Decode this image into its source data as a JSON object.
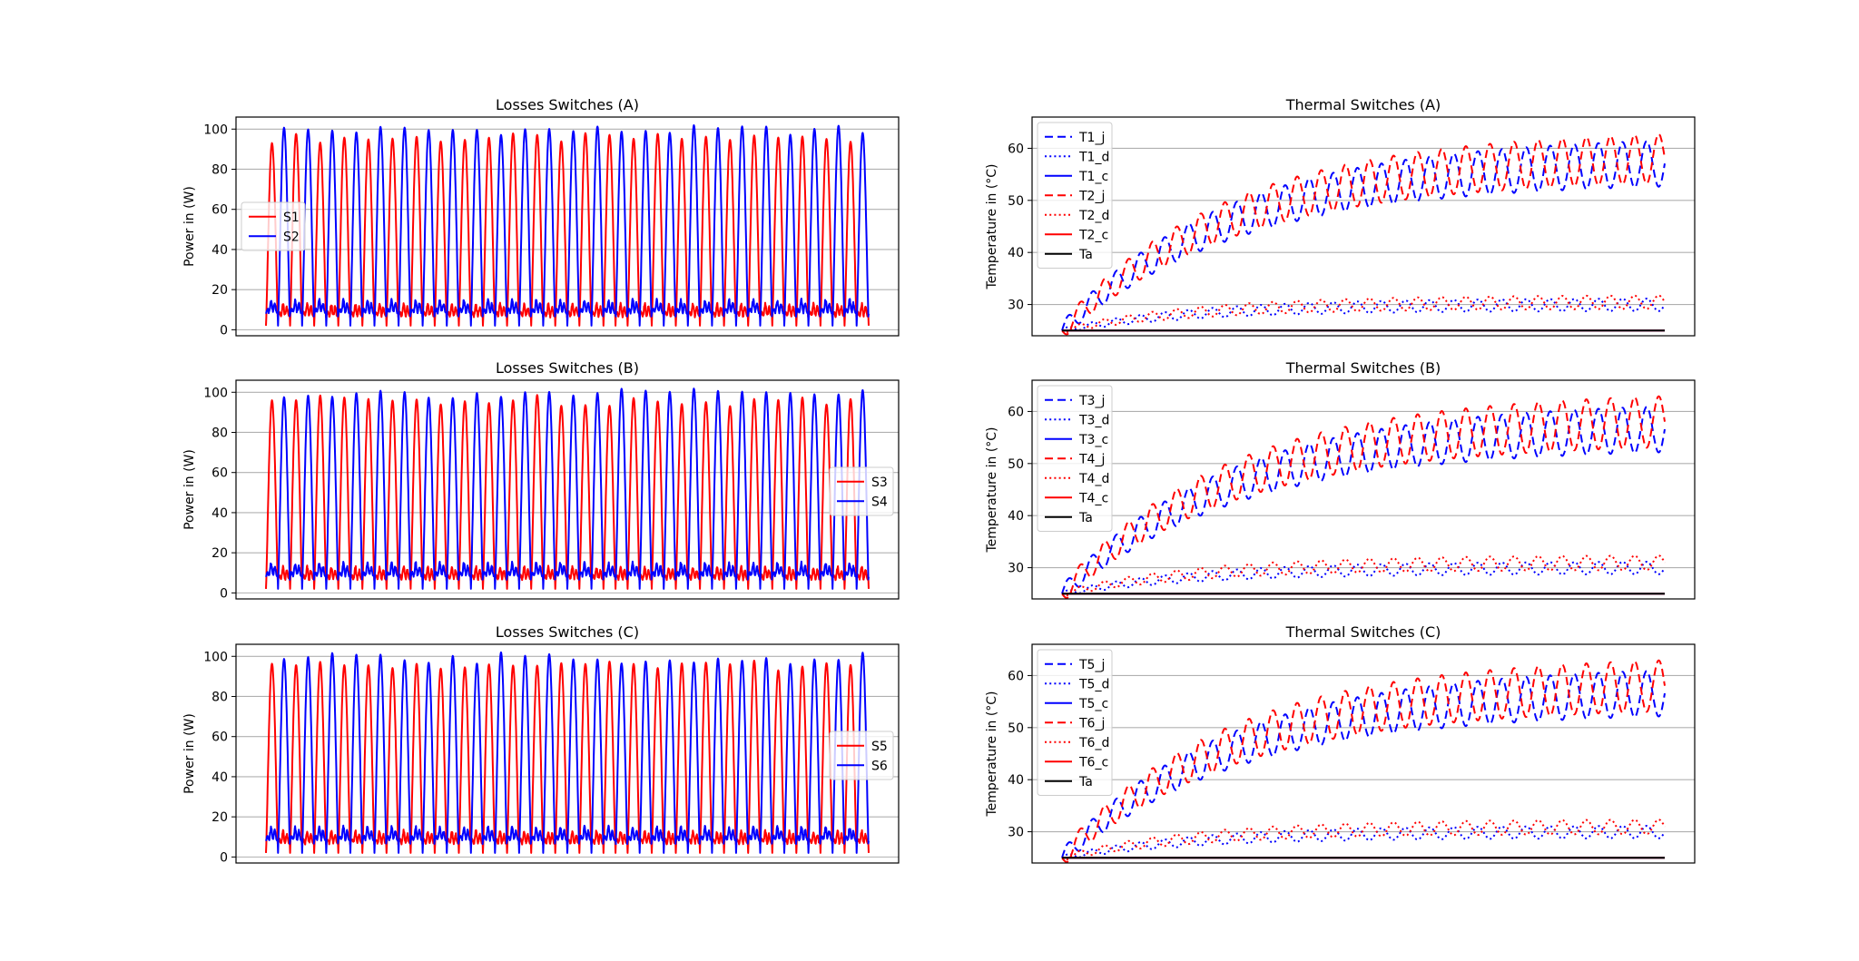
{
  "colors": {
    "phase1": "#ff0000",
    "phase2": "#0000ff",
    "ambient": "#000000",
    "grid": "#b0b0b0"
  },
  "chart_data": [
    {
      "type": "line",
      "id": "loss_a",
      "title": "Losses Switches (A)",
      "xlabel": "",
      "ylabel": "Power in (W)",
      "ylim": [
        -3,
        106
      ],
      "yticks": [
        0,
        20,
        40,
        60,
        80,
        100
      ],
      "grid": "horizontal",
      "legend_position": "center-left",
      "n_cycles": 25,
      "series": [
        {
          "name": "S1",
          "color": "#ff0000",
          "style": "solid",
          "values": {
            "peak": 96,
            "peak_range": [
              93,
              98
            ],
            "valley": 2,
            "conduction_level": 10
          }
        },
        {
          "name": "S2",
          "color": "#0000ff",
          "style": "solid",
          "values": {
            "peak": 99,
            "peak_range": [
              97,
              102
            ],
            "valley": 2,
            "conduction_level": 12
          }
        }
      ]
    },
    {
      "type": "line",
      "id": "thermal_a",
      "title": "Thermal Switches (A)",
      "xlabel": "",
      "ylabel": "Temperature in (°C)",
      "ylim": [
        24,
        66
      ],
      "yticks": [
        30,
        40,
        50,
        60
      ],
      "grid": "horizontal",
      "legend_position": "upper-left",
      "n_cycles": 25,
      "t_start": 25,
      "series": [
        {
          "name": "T1_j",
          "color": "#0000ff",
          "style": "dashed",
          "values": {
            "steady_mean": 58,
            "amplitude": 4.5
          }
        },
        {
          "name": "T1_d",
          "color": "#0000ff",
          "style": "dotted",
          "values": {
            "steady_mean": 30,
            "amplitude": 1.2
          }
        },
        {
          "name": "T1_c",
          "color": "#0000ff",
          "style": "solid",
          "values": {
            "steady_mean": 25,
            "amplitude": 0
          }
        },
        {
          "name": "T2_j",
          "color": "#ff0000",
          "style": "dashed",
          "values": {
            "steady_mean": 59,
            "amplitude": 4.8
          }
        },
        {
          "name": "T2_d",
          "color": "#ff0000",
          "style": "dotted",
          "values": {
            "steady_mean": 30.5,
            "amplitude": 1.3
          }
        },
        {
          "name": "T2_c",
          "color": "#ff0000",
          "style": "solid",
          "values": {
            "steady_mean": 25,
            "amplitude": 0
          }
        },
        {
          "name": "Ta",
          "color": "#000000",
          "style": "solid",
          "values": {
            "steady_mean": 25,
            "amplitude": 0
          }
        }
      ]
    },
    {
      "type": "line",
      "id": "loss_b",
      "title": "Losses Switches (B)",
      "xlabel": "",
      "ylabel": "Power in (W)",
      "ylim": [
        -3,
        106
      ],
      "yticks": [
        0,
        20,
        40,
        60,
        80,
        100
      ],
      "grid": "horizontal",
      "legend_position": "center-right",
      "n_cycles": 25,
      "series": [
        {
          "name": "S3",
          "color": "#ff0000",
          "style": "solid",
          "values": {
            "peak": 96,
            "peak_range": [
              93,
              99
            ],
            "valley": 2,
            "conduction_level": 10
          }
        },
        {
          "name": "S4",
          "color": "#0000ff",
          "style": "solid",
          "values": {
            "peak": 99,
            "peak_range": [
              97,
              102
            ],
            "valley": 2,
            "conduction_level": 12
          }
        }
      ]
    },
    {
      "type": "line",
      "id": "thermal_b",
      "title": "Thermal Switches (B)",
      "xlabel": "",
      "ylabel": "Temperature in (°C)",
      "ylim": [
        24,
        66
      ],
      "yticks": [
        30,
        40,
        50,
        60
      ],
      "grid": "horizontal",
      "legend_position": "upper-left",
      "n_cycles": 25,
      "t_start": 25,
      "series": [
        {
          "name": "T3_j",
          "color": "#0000ff",
          "style": "dashed",
          "values": {
            "steady_mean": 57.5,
            "amplitude": 4.5
          }
        },
        {
          "name": "T3_d",
          "color": "#0000ff",
          "style": "dotted",
          "values": {
            "steady_mean": 30,
            "amplitude": 1.2
          }
        },
        {
          "name": "T3_c",
          "color": "#0000ff",
          "style": "solid",
          "values": {
            "steady_mean": 25,
            "amplitude": 0
          }
        },
        {
          "name": "T4_j",
          "color": "#ff0000",
          "style": "dashed",
          "values": {
            "steady_mean": 59,
            "amplitude": 5
          }
        },
        {
          "name": "T4_d",
          "color": "#ff0000",
          "style": "dotted",
          "values": {
            "steady_mean": 31,
            "amplitude": 1.4
          }
        },
        {
          "name": "T4_c",
          "color": "#ff0000",
          "style": "solid",
          "values": {
            "steady_mean": 25,
            "amplitude": 0
          }
        },
        {
          "name": "Ta",
          "color": "#000000",
          "style": "solid",
          "values": {
            "steady_mean": 25,
            "amplitude": 0
          }
        }
      ]
    },
    {
      "type": "line",
      "id": "loss_c",
      "title": "Losses Switches (C)",
      "xlabel": "",
      "ylabel": "Power in (W)",
      "ylim": [
        -3,
        106
      ],
      "yticks": [
        0,
        20,
        40,
        60,
        80,
        100
      ],
      "grid": "horizontal",
      "legend_position": "center-right",
      "n_cycles": 25,
      "series": [
        {
          "name": "S5",
          "color": "#ff0000",
          "style": "solid",
          "values": {
            "peak": 96,
            "peak_range": [
              93,
              98
            ],
            "valley": 2,
            "conduction_level": 10
          }
        },
        {
          "name": "S6",
          "color": "#0000ff",
          "style": "solid",
          "values": {
            "peak": 99,
            "peak_range": [
              96,
              102
            ],
            "valley": 2,
            "conduction_level": 12
          }
        }
      ]
    },
    {
      "type": "line",
      "id": "thermal_c",
      "title": "Thermal Switches (C)",
      "xlabel": "",
      "ylabel": "Temperature in (°C)",
      "ylim": [
        24,
        66
      ],
      "yticks": [
        30,
        40,
        50,
        60
      ],
      "grid": "horizontal",
      "legend_position": "upper-left",
      "n_cycles": 25,
      "t_start": 25,
      "series": [
        {
          "name": "T5_j",
          "color": "#0000ff",
          "style": "dashed",
          "values": {
            "steady_mean": 57.5,
            "amplitude": 4.5
          }
        },
        {
          "name": "T5_d",
          "color": "#0000ff",
          "style": "dotted",
          "values": {
            "steady_mean": 30,
            "amplitude": 1.2
          }
        },
        {
          "name": "T5_c",
          "color": "#0000ff",
          "style": "solid",
          "values": {
            "steady_mean": 25,
            "amplitude": 0
          }
        },
        {
          "name": "T6_j",
          "color": "#ff0000",
          "style": "dashed",
          "values": {
            "steady_mean": 59,
            "amplitude": 5
          }
        },
        {
          "name": "T6_d",
          "color": "#ff0000",
          "style": "dotted",
          "values": {
            "steady_mean": 31,
            "amplitude": 1.4
          }
        },
        {
          "name": "T6_c",
          "color": "#ff0000",
          "style": "solid",
          "values": {
            "steady_mean": 25,
            "amplitude": 0
          }
        },
        {
          "name": "Ta",
          "color": "#000000",
          "style": "solid",
          "values": {
            "steady_mean": 25,
            "amplitude": 0
          }
        }
      ]
    }
  ]
}
